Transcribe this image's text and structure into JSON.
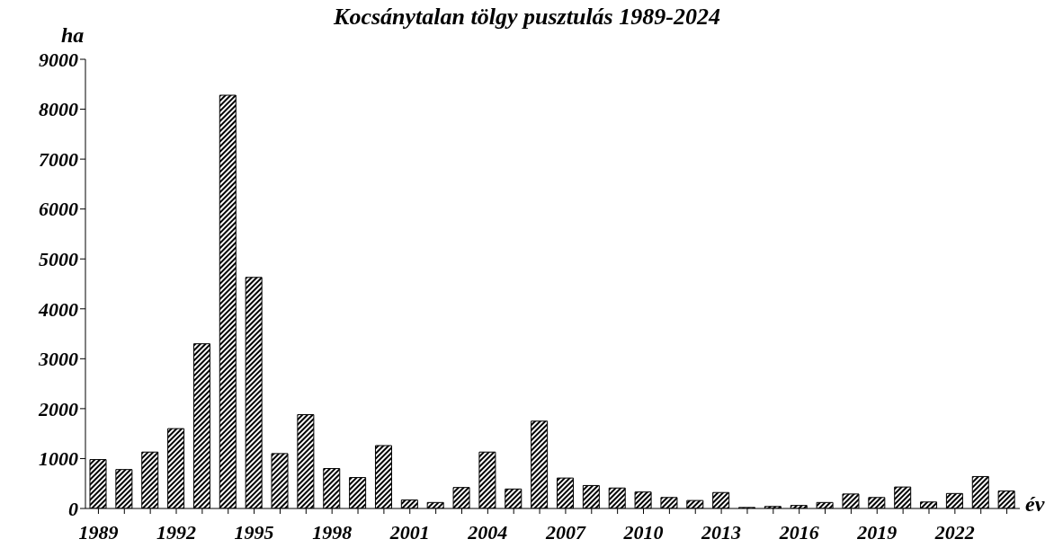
{
  "chart_data": {
    "type": "bar",
    "title": "Kocsánytalan tölgy pusztulás 1989-2024",
    "xlabel": "év",
    "ylabel": "ha",
    "categories": [
      "1989",
      null,
      null,
      "1992",
      null,
      null,
      "1995",
      null,
      null,
      "1998",
      null,
      null,
      "2001",
      null,
      null,
      "2004",
      null,
      null,
      "2007",
      null,
      null,
      "2010",
      null,
      null,
      "2013",
      null,
      null,
      "2016",
      null,
      null,
      "2019",
      null,
      null,
      "2022",
      null,
      null
    ],
    "values": [
      980,
      780,
      1130,
      1600,
      3300,
      8280,
      4630,
      1100,
      1880,
      800,
      620,
      1260,
      170,
      120,
      420,
      1130,
      390,
      1750,
      610,
      460,
      410,
      330,
      220,
      160,
      320,
      20,
      40,
      60,
      120,
      290,
      220,
      430,
      130,
      300,
      640,
      350
    ],
    "color": "#000000",
    "ylim": [
      0,
      9000
    ],
    "yticks": [
      0,
      1000,
      2000,
      3000,
      4000,
      5000,
      6000,
      7000,
      8000,
      9000
    ],
    "grid": false,
    "legend": false
  }
}
